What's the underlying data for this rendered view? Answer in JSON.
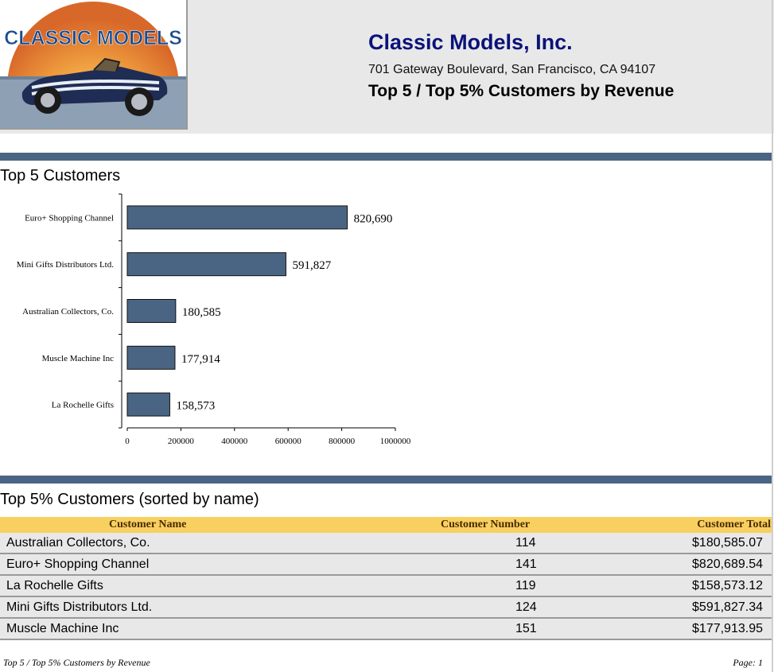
{
  "header": {
    "logo_text": "CLASSIC MODELS",
    "company_name": "Classic Models, Inc.",
    "address": "701 Gateway Boulevard, San Francisco, CA 94107",
    "report_title": "Top 5 / Top 5% Customers by Revenue"
  },
  "sections": {
    "top5_heading": "Top 5 Customers",
    "top5pct_heading": "Top 5% Customers (sorted by name)"
  },
  "chart_data": {
    "type": "bar",
    "orientation": "horizontal",
    "categories": [
      "Euro+ Shopping Channel",
      "Mini Gifts Distributors Ltd.",
      "Australian Collectors, Co.",
      "Muscle Machine Inc",
      "La Rochelle Gifts"
    ],
    "values": [
      820690,
      591827,
      180585,
      177914,
      158573
    ],
    "data_labels": [
      "820,690",
      "591,827",
      "180,585",
      "177,914",
      "158,573"
    ],
    "xlim": [
      0,
      1000000
    ],
    "x_ticks": [
      "0",
      "200000",
      "400000",
      "600000",
      "800000",
      "1000000"
    ],
    "bar_color": "#4a6584",
    "grid": false,
    "legend": "none"
  },
  "table": {
    "headers": {
      "name": "Customer Name",
      "number": "Customer Number",
      "total": "Customer Total"
    },
    "rows": [
      {
        "name": "Australian Collectors, Co.",
        "number": "114",
        "total": "$180,585.07"
      },
      {
        "name": "Euro+ Shopping Channel",
        "number": "141",
        "total": "$820,689.54"
      },
      {
        "name": "La Rochelle Gifts",
        "number": "119",
        "total": "$158,573.12"
      },
      {
        "name": "Mini Gifts Distributors Ltd.",
        "number": "124",
        "total": "$591,827.34"
      },
      {
        "name": "Muscle Machine Inc",
        "number": "151",
        "total": "$177,913.95"
      }
    ]
  },
  "footer": {
    "title": "Top 5 / Top 5% Customers by Revenue",
    "page": "Page: 1"
  },
  "colors": {
    "accent_bar": "#4a6584",
    "table_header": "#f8d060",
    "company_name": "#0a127a",
    "logo_text": "#1a4a8c"
  }
}
